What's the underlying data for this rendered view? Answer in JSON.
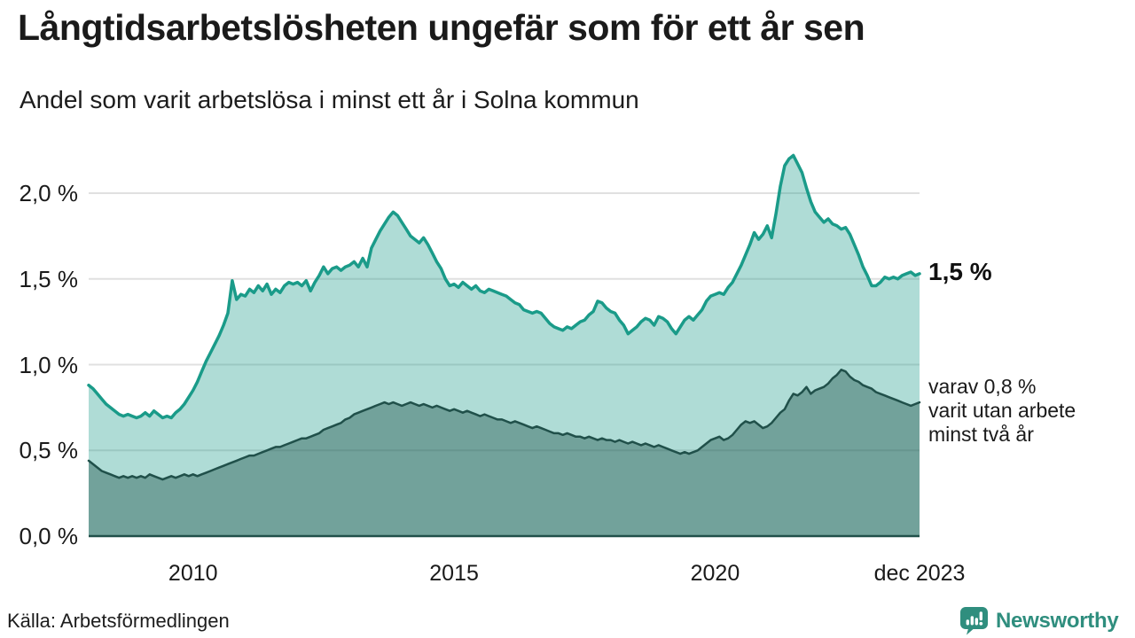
{
  "header": {
    "title": "Långtidsarbetslösheten ungefär som för ett år sen",
    "subtitle": "Andel som varit arbetslösa i minst ett år i Solna kommun"
  },
  "footer": {
    "source": "Källa: Arbetsförmedlingen",
    "brand_name": "Newsworthy"
  },
  "chart_data": {
    "type": "area",
    "x_start": "2008-01",
    "x_end": "2023-12",
    "frequency": "monthly",
    "ylim": [
      0,
      2.2
    ],
    "grid": true,
    "colors": {
      "grid": "#e0e0e0",
      "baseline": "#20504a",
      "accent": "#1a9b89",
      "dark": "#20504a",
      "brand": "#2f8e7e"
    },
    "yticks": [
      {
        "value": 0.0,
        "label": "0,0 %"
      },
      {
        "value": 0.5,
        "label": "0,5 %"
      },
      {
        "value": 1.0,
        "label": "1,0 %"
      },
      {
        "value": 1.5,
        "label": "1,5 %"
      },
      {
        "value": 2.0,
        "label": "2,0 %"
      }
    ],
    "xticks": [
      {
        "label": "2010",
        "month_index": 24
      },
      {
        "label": "2015",
        "month_index": 84
      },
      {
        "label": "2020",
        "month_index": 144
      },
      {
        "label": "dec 2023",
        "month_index": 191
      }
    ],
    "annotations": {
      "end_label": "1,5 %",
      "sub_label_lines": [
        "varav 0,8 %",
        "varit utan arbete",
        "minst två år"
      ]
    },
    "series": [
      {
        "id": "minst-ett-ar",
        "name": "Andel som varit arbetslösa minst ett år",
        "color": "#1a9b89",
        "fill": "rgba(26,155,137,0.35)",
        "width": 3.5,
        "values": [
          0.88,
          0.86,
          0.83,
          0.8,
          0.77,
          0.75,
          0.73,
          0.71,
          0.7,
          0.71,
          0.7,
          0.69,
          0.7,
          0.72,
          0.7,
          0.73,
          0.71,
          0.69,
          0.7,
          0.69,
          0.72,
          0.74,
          0.77,
          0.81,
          0.85,
          0.9,
          0.96,
          1.02,
          1.07,
          1.12,
          1.17,
          1.23,
          1.3,
          1.49,
          1.38,
          1.41,
          1.4,
          1.44,
          1.42,
          1.46,
          1.43,
          1.47,
          1.41,
          1.44,
          1.42,
          1.46,
          1.48,
          1.47,
          1.48,
          1.46,
          1.49,
          1.43,
          1.48,
          1.52,
          1.57,
          1.53,
          1.56,
          1.57,
          1.55,
          1.57,
          1.58,
          1.6,
          1.57,
          1.62,
          1.57,
          1.68,
          1.73,
          1.78,
          1.82,
          1.86,
          1.89,
          1.87,
          1.83,
          1.79,
          1.75,
          1.73,
          1.71,
          1.74,
          1.7,
          1.65,
          1.6,
          1.56,
          1.5,
          1.46,
          1.47,
          1.45,
          1.48,
          1.46,
          1.44,
          1.46,
          1.43,
          1.42,
          1.44,
          1.43,
          1.42,
          1.41,
          1.4,
          1.38,
          1.36,
          1.35,
          1.32,
          1.31,
          1.3,
          1.31,
          1.3,
          1.27,
          1.24,
          1.22,
          1.21,
          1.2,
          1.22,
          1.21,
          1.23,
          1.25,
          1.26,
          1.29,
          1.31,
          1.37,
          1.36,
          1.33,
          1.31,
          1.3,
          1.26,
          1.23,
          1.18,
          1.2,
          1.22,
          1.25,
          1.27,
          1.26,
          1.23,
          1.28,
          1.27,
          1.25,
          1.21,
          1.18,
          1.22,
          1.26,
          1.28,
          1.26,
          1.29,
          1.32,
          1.37,
          1.4,
          1.41,
          1.42,
          1.41,
          1.45,
          1.48,
          1.53,
          1.58,
          1.64,
          1.7,
          1.77,
          1.73,
          1.76,
          1.81,
          1.74,
          1.88,
          2.04,
          2.16,
          2.2,
          2.22,
          2.17,
          2.12,
          2.03,
          1.95,
          1.89,
          1.86,
          1.83,
          1.85,
          1.82,
          1.81,
          1.79,
          1.8,
          1.76,
          1.7,
          1.64,
          1.57,
          1.52,
          1.46,
          1.46,
          1.48,
          1.51,
          1.5,
          1.51,
          1.5,
          1.52,
          1.53,
          1.54,
          1.52,
          1.53
        ]
      },
      {
        "id": "minst-tva-ar",
        "name": "varav arbetslösa minst två år",
        "color": "#20504a",
        "fill": "rgba(32,80,74,0.42)",
        "width": 2.5,
        "values": [
          0.44,
          0.42,
          0.4,
          0.38,
          0.37,
          0.36,
          0.35,
          0.34,
          0.35,
          0.34,
          0.35,
          0.34,
          0.35,
          0.34,
          0.36,
          0.35,
          0.34,
          0.33,
          0.34,
          0.35,
          0.34,
          0.35,
          0.36,
          0.35,
          0.36,
          0.35,
          0.36,
          0.37,
          0.38,
          0.39,
          0.4,
          0.41,
          0.42,
          0.43,
          0.44,
          0.45,
          0.46,
          0.47,
          0.47,
          0.48,
          0.49,
          0.5,
          0.51,
          0.52,
          0.52,
          0.53,
          0.54,
          0.55,
          0.56,
          0.57,
          0.57,
          0.58,
          0.59,
          0.6,
          0.62,
          0.63,
          0.64,
          0.65,
          0.66,
          0.68,
          0.69,
          0.71,
          0.72,
          0.73,
          0.74,
          0.75,
          0.76,
          0.77,
          0.78,
          0.77,
          0.78,
          0.77,
          0.76,
          0.77,
          0.78,
          0.77,
          0.76,
          0.77,
          0.76,
          0.75,
          0.76,
          0.75,
          0.74,
          0.73,
          0.74,
          0.73,
          0.72,
          0.73,
          0.72,
          0.71,
          0.7,
          0.71,
          0.7,
          0.69,
          0.68,
          0.68,
          0.67,
          0.66,
          0.67,
          0.66,
          0.65,
          0.64,
          0.63,
          0.64,
          0.63,
          0.62,
          0.61,
          0.6,
          0.6,
          0.59,
          0.6,
          0.59,
          0.58,
          0.58,
          0.57,
          0.58,
          0.57,
          0.56,
          0.57,
          0.56,
          0.56,
          0.55,
          0.56,
          0.55,
          0.54,
          0.55,
          0.54,
          0.53,
          0.54,
          0.53,
          0.52,
          0.53,
          0.52,
          0.51,
          0.5,
          0.49,
          0.48,
          0.49,
          0.48,
          0.49,
          0.5,
          0.52,
          0.54,
          0.56,
          0.57,
          0.58,
          0.56,
          0.57,
          0.59,
          0.62,
          0.65,
          0.67,
          0.66,
          0.67,
          0.65,
          0.63,
          0.64,
          0.66,
          0.69,
          0.72,
          0.74,
          0.79,
          0.83,
          0.82,
          0.84,
          0.87,
          0.83,
          0.85,
          0.86,
          0.87,
          0.89,
          0.92,
          0.94,
          0.97,
          0.96,
          0.93,
          0.91,
          0.9,
          0.88,
          0.87,
          0.86,
          0.84,
          0.83,
          0.82,
          0.81,
          0.8,
          0.79,
          0.78,
          0.77,
          0.76,
          0.77,
          0.78
        ]
      }
    ]
  }
}
